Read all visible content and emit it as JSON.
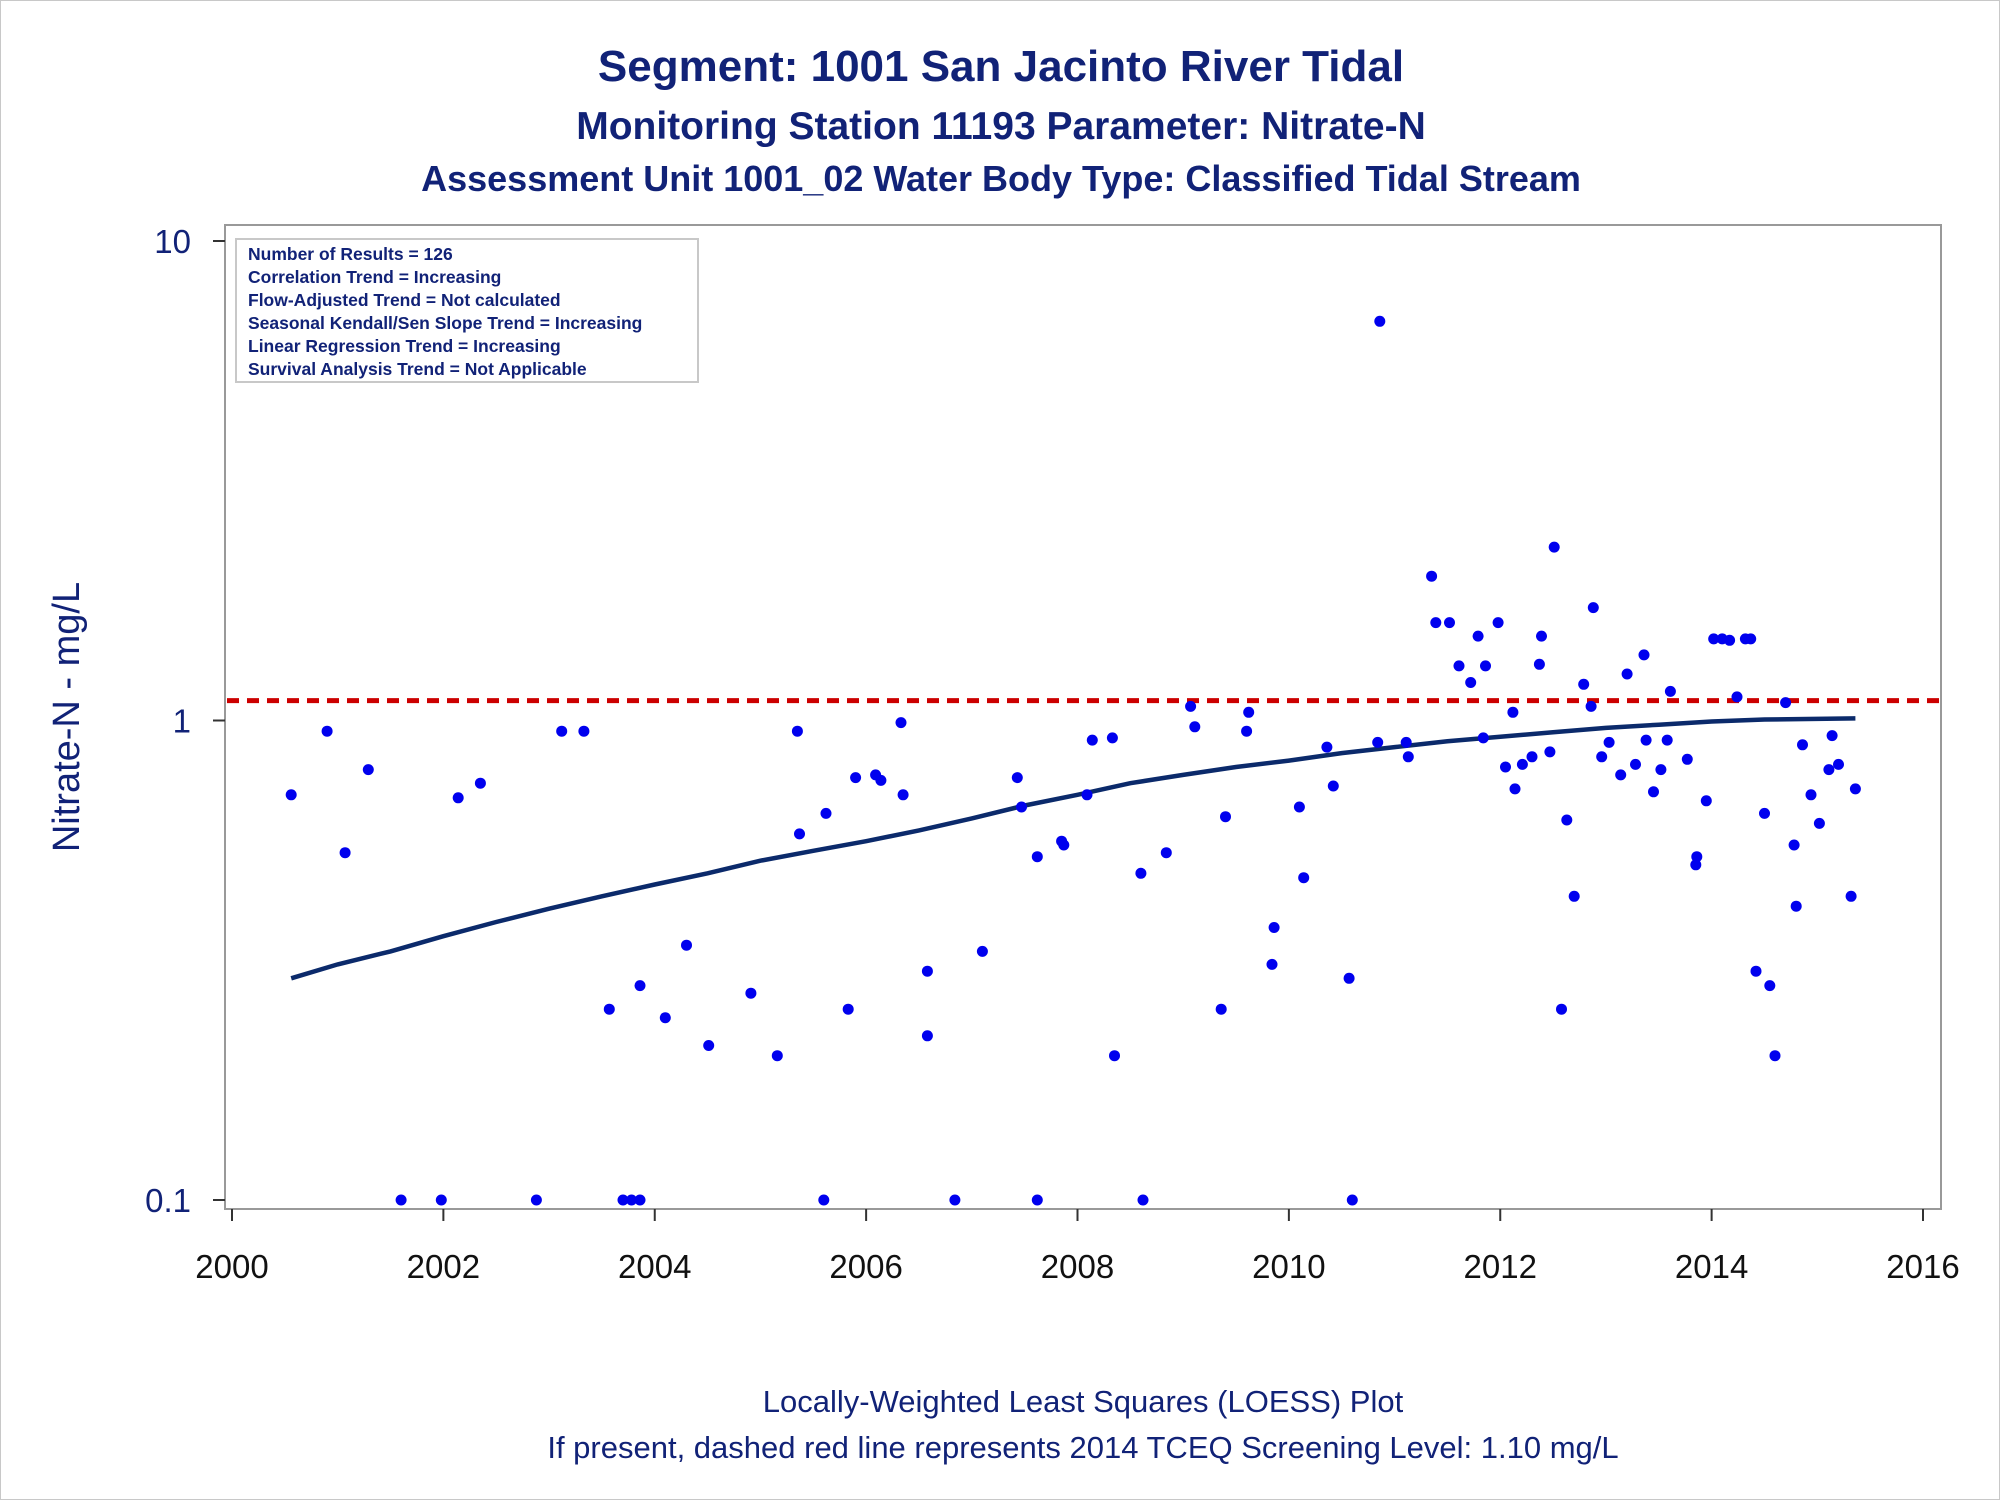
{
  "chart_data": {
    "type": "scatter",
    "title": "Segment: 1001  San Jacinto River Tidal",
    "subtitle": "Monitoring Station 11193 Parameter: Nitrate-N",
    "subtitle2": "Assessment Unit 1001_02   Water Body Type: Classified Tidal Stream",
    "xlabel": "",
    "ylabel": "Nitrate-N - mg/L",
    "yscale": "log",
    "xlim": [
      2000,
      2016
    ],
    "ylim": [
      0.1,
      10
    ],
    "x_ticks": [
      2000,
      2002,
      2004,
      2006,
      2008,
      2010,
      2012,
      2014,
      2016
    ],
    "y_ticks": [
      0.1,
      1,
      10
    ],
    "y_tick_labels": [
      "0.1",
      "1",
      "10"
    ],
    "grid": false,
    "colors": {
      "points": "#0000ee",
      "loess": "#0b2a6b",
      "screening": "#cc0000",
      "text": "#112277"
    },
    "stats_box": {
      "placement": "top-left",
      "lines": [
        "Number of Results = 126",
        "Correlation Trend = Increasing",
        "Flow-Adjusted Trend = Not calculated",
        "Seasonal Kendall/Sen Slope Trend = Increasing",
        "Linear Regression Trend = Increasing",
        "Survival Analysis Trend = Not Applicable"
      ]
    },
    "screening_level": 1.1,
    "footnotes": [
      "Locally-Weighted Least Squares (LOESS) Plot",
      "If present, dashed red line represents 2014 TCEQ Screening Level: 1.10 mg/L"
    ],
    "points": [
      [
        2000.56,
        0.7
      ],
      [
        2000.9,
        0.95
      ],
      [
        2001.07,
        0.53
      ],
      [
        2001.29,
        0.79
      ],
      [
        2001.6,
        0.1
      ],
      [
        2001.98,
        0.1
      ],
      [
        2002.14,
        0.69
      ],
      [
        2002.35,
        0.74
      ],
      [
        2002.88,
        0.1
      ],
      [
        2003.12,
        0.95
      ],
      [
        2003.33,
        0.95
      ],
      [
        2003.57,
        0.25
      ],
      [
        2003.7,
        0.1
      ],
      [
        2003.78,
        0.1
      ],
      [
        2003.86,
        0.1
      ],
      [
        2003.86,
        0.28
      ],
      [
        2004.1,
        0.24
      ],
      [
        2004.3,
        0.34
      ],
      [
        2004.51,
        0.21
      ],
      [
        2004.91,
        0.27
      ],
      [
        2005.16,
        0.2
      ],
      [
        2005.35,
        0.95
      ],
      [
        2005.37,
        0.58
      ],
      [
        2005.6,
        0.1
      ],
      [
        2005.62,
        0.64
      ],
      [
        2005.83,
        0.25
      ],
      [
        2005.9,
        0.76
      ],
      [
        2006.09,
        0.77
      ],
      [
        2006.14,
        0.75
      ],
      [
        2006.33,
        0.99
      ],
      [
        2006.35,
        0.7
      ],
      [
        2006.58,
        0.3
      ],
      [
        2006.58,
        0.22
      ],
      [
        2006.84,
        0.1
      ],
      [
        2007.1,
        0.33
      ],
      [
        2007.43,
        0.76
      ],
      [
        2007.47,
        0.66
      ],
      [
        2007.62,
        0.1
      ],
      [
        2007.62,
        0.52
      ],
      [
        2007.85,
        0.56
      ],
      [
        2007.87,
        0.55
      ],
      [
        2008.09,
        0.7
      ],
      [
        2008.14,
        0.91
      ],
      [
        2008.33,
        0.92
      ],
      [
        2008.35,
        0.2
      ],
      [
        2008.6,
        0.48
      ],
      [
        2008.62,
        0.1
      ],
      [
        2008.84,
        0.53
      ],
      [
        2009.07,
        1.07
      ],
      [
        2009.11,
        0.97
      ],
      [
        2009.36,
        0.25
      ],
      [
        2009.4,
        0.63
      ],
      [
        2009.6,
        0.95
      ],
      [
        2009.62,
        1.04
      ],
      [
        2009.84,
        0.31
      ],
      [
        2009.86,
        0.37
      ],
      [
        2010.1,
        0.66
      ],
      [
        2010.14,
        0.47
      ],
      [
        2010.36,
        0.88
      ],
      [
        2010.42,
        0.73
      ],
      [
        2010.57,
        0.29
      ],
      [
        2010.6,
        0.1
      ],
      [
        2010.84,
        0.9
      ],
      [
        2010.86,
        6.8
      ],
      [
        2011.11,
        0.9
      ],
      [
        2011.13,
        0.84
      ],
      [
        2011.35,
        2.0
      ],
      [
        2011.39,
        1.6
      ],
      [
        2011.52,
        1.6
      ],
      [
        2011.61,
        1.3
      ],
      [
        2011.72,
        1.2
      ],
      [
        2011.79,
        1.5
      ],
      [
        2011.84,
        0.92
      ],
      [
        2011.86,
        1.3
      ],
      [
        2011.98,
        1.6
      ],
      [
        2012.05,
        0.8
      ],
      [
        2012.12,
        1.04
      ],
      [
        2012.14,
        0.72
      ],
      [
        2012.21,
        0.81
      ],
      [
        2012.3,
        0.84
      ],
      [
        2012.37,
        1.31
      ],
      [
        2012.39,
        1.5
      ],
      [
        2012.47,
        0.86
      ],
      [
        2012.51,
        2.3
      ],
      [
        2012.58,
        0.25
      ],
      [
        2012.63,
        0.62
      ],
      [
        2012.7,
        0.43
      ],
      [
        2012.79,
        1.19
      ],
      [
        2012.86,
        1.07
      ],
      [
        2012.88,
        1.72
      ],
      [
        2012.96,
        0.84
      ],
      [
        2013.03,
        0.9
      ],
      [
        2013.14,
        0.77
      ],
      [
        2013.2,
        1.25
      ],
      [
        2013.28,
        0.81
      ],
      [
        2013.36,
        1.37
      ],
      [
        2013.38,
        0.91
      ],
      [
        2013.45,
        0.71
      ],
      [
        2013.52,
        0.79
      ],
      [
        2013.58,
        0.91
      ],
      [
        2013.61,
        1.15
      ],
      [
        2013.77,
        0.83
      ],
      [
        2013.85,
        0.5
      ],
      [
        2013.86,
        0.52
      ],
      [
        2013.95,
        0.68
      ],
      [
        2014.02,
        1.48
      ],
      [
        2014.1,
        1.48
      ],
      [
        2014.17,
        1.47
      ],
      [
        2014.24,
        1.12
      ],
      [
        2014.32,
        1.48
      ],
      [
        2014.37,
        1.48
      ],
      [
        2014.42,
        0.3
      ],
      [
        2014.5,
        0.64
      ],
      [
        2014.55,
        0.28
      ],
      [
        2014.6,
        0.2
      ],
      [
        2014.7,
        1.09
      ],
      [
        2014.78,
        0.55
      ],
      [
        2014.8,
        0.41
      ],
      [
        2014.86,
        0.89
      ],
      [
        2014.94,
        0.7
      ],
      [
        2015.02,
        0.61
      ],
      [
        2015.11,
        0.79
      ],
      [
        2015.14,
        0.93
      ],
      [
        2015.2,
        0.81
      ],
      [
        2015.32,
        0.43
      ],
      [
        2015.36,
        0.72
      ]
    ],
    "loess": [
      [
        2000.56,
        0.29
      ],
      [
        2001.0,
        0.31
      ],
      [
        2001.5,
        0.33
      ],
      [
        2002.0,
        0.355
      ],
      [
        2002.5,
        0.38
      ],
      [
        2003.0,
        0.405
      ],
      [
        2003.5,
        0.43
      ],
      [
        2004.0,
        0.455
      ],
      [
        2004.5,
        0.48
      ],
      [
        2005.0,
        0.51
      ],
      [
        2005.5,
        0.535
      ],
      [
        2006.0,
        0.56
      ],
      [
        2006.5,
        0.59
      ],
      [
        2007.0,
        0.625
      ],
      [
        2007.5,
        0.665
      ],
      [
        2008.0,
        0.7
      ],
      [
        2008.5,
        0.74
      ],
      [
        2009.0,
        0.77
      ],
      [
        2009.5,
        0.8
      ],
      [
        2010.0,
        0.825
      ],
      [
        2010.5,
        0.855
      ],
      [
        2011.0,
        0.88
      ],
      [
        2011.5,
        0.905
      ],
      [
        2012.0,
        0.925
      ],
      [
        2012.5,
        0.945
      ],
      [
        2013.0,
        0.965
      ],
      [
        2013.5,
        0.98
      ],
      [
        2014.0,
        0.995
      ],
      [
        2014.5,
        1.005
      ],
      [
        2015.36,
        1.01
      ]
    ]
  }
}
